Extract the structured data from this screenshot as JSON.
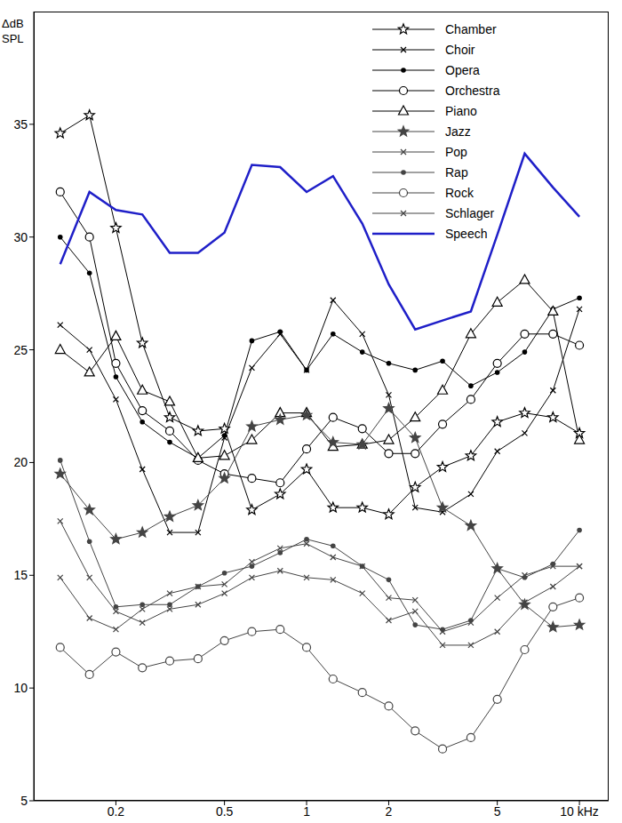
{
  "chart_data": {
    "type": "line",
    "y_label": "ΔdB SPL",
    "x": [
      0.125,
      0.16,
      0.2,
      0.25,
      0.315,
      0.4,
      0.5,
      0.63,
      0.8,
      1,
      1.25,
      1.6,
      2,
      2.5,
      3.15,
      4,
      5,
      6.3,
      8,
      10
    ],
    "xlim": [
      0.1,
      12.8
    ],
    "xticks": [
      0.2,
      0.5,
      1,
      2,
      5,
      {
        "value": 10,
        "label": "10 kHz"
      }
    ],
    "ylim": [
      5,
      40
    ],
    "yticks": [
      5,
      10,
      15,
      20,
      25,
      30,
      35
    ],
    "log": "x",
    "grid": false,
    "legend": "upper right",
    "series": [
      {
        "name": "Chamber",
        "color": "#000000",
        "marker": "star",
        "values": [
          34.6,
          35.4,
          30.4,
          25.3,
          22.0,
          21.4,
          21.5,
          17.9,
          18.6,
          19.7,
          18.0,
          18.0,
          17.7,
          18.9,
          19.8,
          20.3,
          21.8,
          22.2,
          22.0,
          21.3
        ]
      },
      {
        "name": "Choir",
        "color": "#000000",
        "marker": "x",
        "values": [
          26.1,
          25.0,
          22.8,
          19.7,
          16.9,
          16.9,
          21.1,
          24.2,
          25.7,
          24.1,
          27.2,
          25.7,
          23.0,
          18.0,
          17.8,
          18.6,
          20.5,
          21.3,
          23.2,
          26.8
        ]
      },
      {
        "name": "Opera",
        "color": "#000000",
        "marker": "dot",
        "values": [
          30.0,
          28.4,
          23.8,
          21.8,
          20.9,
          20.2,
          21.2,
          25.4,
          25.8,
          24.1,
          25.7,
          24.9,
          24.4,
          24.1,
          24.5,
          23.4,
          24.0,
          24.9,
          26.8,
          27.3
        ]
      },
      {
        "name": "Orchestra",
        "color": "#000000",
        "marker": "circle",
        "values": [
          32.0,
          30.0,
          24.4,
          22.3,
          21.4,
          20.1,
          19.5,
          19.3,
          19.1,
          20.6,
          22.0,
          21.5,
          20.4,
          20.4,
          21.7,
          22.8,
          24.4,
          25.7,
          25.7,
          25.2
        ]
      },
      {
        "name": "Piano",
        "color": "#000000",
        "marker": "triangle",
        "values": [
          25.0,
          24.0,
          25.6,
          23.2,
          22.7,
          20.2,
          20.3,
          21.0,
          22.2,
          22.2,
          20.7,
          20.8,
          21.0,
          22.0,
          23.2,
          25.7,
          27.1,
          28.1,
          26.7,
          21.0
        ]
      },
      {
        "name": "Jazz",
        "color": "#444444",
        "marker": "star",
        "values": [
          19.5,
          17.9,
          16.6,
          16.9,
          17.6,
          18.1,
          19.3,
          21.6,
          21.9,
          22.1,
          20.9,
          20.8,
          22.4,
          21.1,
          18.0,
          17.2,
          15.3,
          13.7,
          12.7,
          12.8
        ]
      },
      {
        "name": "Pop",
        "color": "#444444",
        "marker": "x",
        "values": [
          17.4,
          14.9,
          13.4,
          12.9,
          13.5,
          13.7,
          14.2,
          14.9,
          15.2,
          14.9,
          14.8,
          14.2,
          13.0,
          13.4,
          11.9,
          11.9,
          12.5,
          13.8,
          14.5,
          15.4
        ]
      },
      {
        "name": "Rap",
        "color": "#444444",
        "marker": "dot",
        "values": [
          20.1,
          16.5,
          13.6,
          13.7,
          13.7,
          14.5,
          15.1,
          15.4,
          16.0,
          16.6,
          16.3,
          15.4,
          14.8,
          12.8,
          12.6,
          13.0,
          15.3,
          14.9,
          15.5,
          17.0
        ]
      },
      {
        "name": "Rock",
        "color": "#444444",
        "marker": "circle",
        "values": [
          11.8,
          10.6,
          11.6,
          10.9,
          11.2,
          11.3,
          12.1,
          12.5,
          12.6,
          11.8,
          10.4,
          9.8,
          9.2,
          8.1,
          7.3,
          7.8,
          9.5,
          11.7,
          13.6,
          14.0
        ]
      },
      {
        "name": "Schlager",
        "color": "#444444",
        "marker": "x",
        "values": [
          14.9,
          13.1,
          12.6,
          13.5,
          14.2,
          14.5,
          14.6,
          15.6,
          16.2,
          16.4,
          15.8,
          15.4,
          14.0,
          13.9,
          12.5,
          12.9,
          14.0,
          15.0,
          15.4,
          15.4
        ]
      },
      {
        "name": "Speech",
        "color": "#1f1fc8",
        "marker": "none",
        "values": [
          28.8,
          32.0,
          31.2,
          31.0,
          29.3,
          29.3,
          30.2,
          33.2,
          33.1,
          32.0,
          32.7,
          30.6,
          27.9,
          25.9,
          26.3,
          26.7,
          30.1,
          33.7,
          32.2,
          30.9
        ]
      }
    ]
  }
}
